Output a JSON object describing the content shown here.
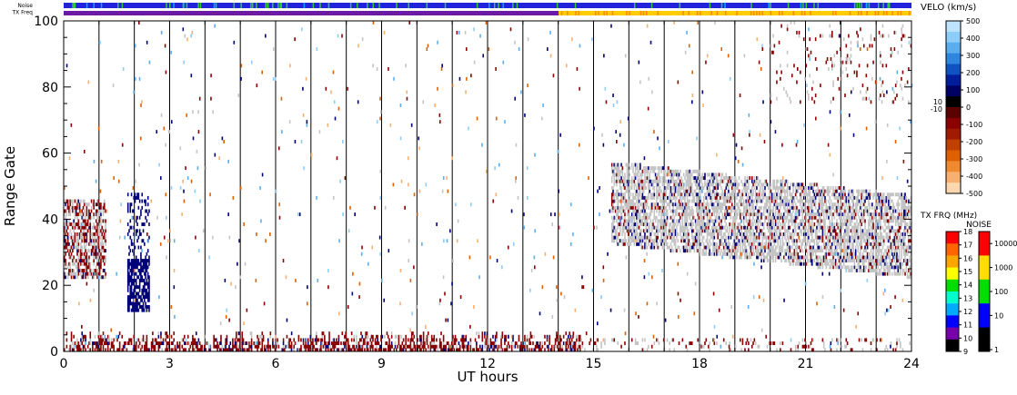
{
  "chart_data": {
    "type": "scatter",
    "subtype": "range-time radar plot",
    "xlabel": "UT hours",
    "ylabel": "Range Gate",
    "xlim": [
      0,
      24
    ],
    "ylim": [
      0,
      100
    ],
    "xticks": [
      "0",
      "3",
      "6",
      "9",
      "12",
      "15",
      "18",
      "21",
      "24"
    ],
    "yticks": [
      "0",
      "20",
      "40",
      "60",
      "80",
      "100"
    ],
    "grid_vertical_hours": [
      1,
      2,
      3,
      4,
      5,
      6,
      7,
      8,
      9,
      10,
      11,
      12,
      13,
      14,
      15,
      16,
      17,
      18,
      19,
      20,
      21,
      22,
      23
    ],
    "top_strips": [
      {
        "name": "Noise",
        "value": "blue with green marks"
      },
      {
        "name": "TX Freq",
        "value_0_14": "purple",
        "value_14_24": "yellow/orange"
      }
    ],
    "scatter_regions": [
      {
        "desc": "ground scatter band",
        "x": [
          0,
          14.5
        ],
        "y": [
          0,
          6
        ],
        "color": "dark-red/grey"
      },
      {
        "desc": "early echoes",
        "x": [
          0,
          1.2
        ],
        "y": [
          22,
          45
        ],
        "color": "dark-red/grey"
      },
      {
        "desc": "negative velocity patch",
        "x": [
          1.8,
          2.4
        ],
        "y": [
          12,
          48
        ],
        "color": "navy"
      },
      {
        "desc": "ionospheric scatter band",
        "x": [
          15.5,
          24
        ],
        "y": [
          25,
          55
        ],
        "color": "grey/navy"
      },
      {
        "desc": "far range echoes",
        "x": [
          20,
          24
        ],
        "y": [
          75,
          100
        ],
        "color": "dark-red/grey"
      }
    ],
    "velocity_colorbar": {
      "title": "VELO (km/s)",
      "ticks": [
        "500",
        "400",
        "300",
        "200",
        "100",
        "0",
        "-100",
        "-200",
        "-300",
        "-400",
        "-500"
      ],
      "side_labels": [
        "10",
        "-10"
      ],
      "colors": [
        "#bfe4ff",
        "#8ccdfa",
        "#5aaef0",
        "#2e86df",
        "#1152c2",
        "#001d9c",
        "#000064",
        "#000000",
        "#5a0000",
        "#8b0000",
        "#a01a00",
        "#c04000",
        "#e06000",
        "#f08a30",
        "#f8b070",
        "#fcd8b0"
      ]
    },
    "txfreq_colorbar": {
      "title": "TX FRQ (MHz)",
      "ticks": [
        "18",
        "17",
        "16",
        "15",
        "14",
        "13",
        "12",
        "11",
        "10",
        "9"
      ],
      "colors": [
        "#ff0000",
        "#ff6600",
        "#ffa500",
        "#ffff00",
        "#00dd00",
        "#00ffcc",
        "#00aaff",
        "#0000ff",
        "#7700aa",
        "#000000"
      ]
    },
    "noise_colorbar": {
      "title": "NOISE",
      "ticks": [
        "10000",
        "1000",
        "100",
        "10",
        "1"
      ],
      "colors": [
        "#ff0000",
        "#ffdd00",
        "#00dd00",
        "#0000ff",
        "#000000"
      ]
    }
  },
  "top_labels": {
    "noise": "Noise",
    "txfreq": "TX Freq"
  }
}
